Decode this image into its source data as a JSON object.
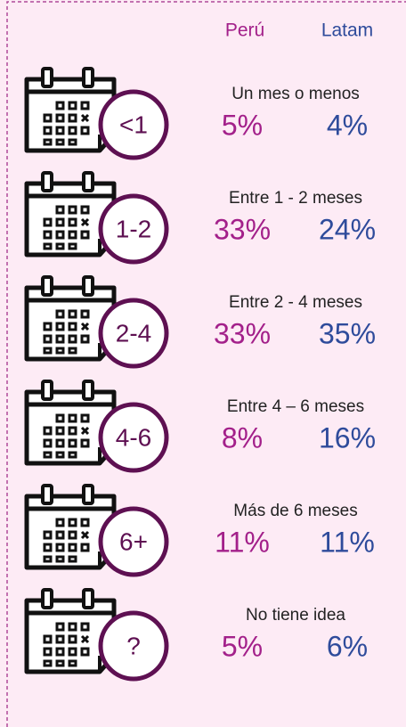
{
  "header": {
    "col1": "Perú",
    "col2": "Latam"
  },
  "rows": [
    {
      "badge": "<1",
      "label": "Un mes o menos",
      "peru": "5%",
      "latam": "4%"
    },
    {
      "badge": "1-2",
      "label": "Entre 1 - 2 meses",
      "peru": "33%",
      "latam": "24%"
    },
    {
      "badge": "2-4",
      "label": "Entre 2 - 4 meses",
      "peru": "33%",
      "latam": "35%"
    },
    {
      "badge": "4-6",
      "label": "Entre 4 – 6 meses",
      "peru": "8%",
      "latam": "16%"
    },
    {
      "badge": "6+",
      "label": "Más de 6 meses",
      "peru": "11%",
      "latam": "11%"
    },
    {
      "badge": "?",
      "label": "No tiene idea",
      "peru": "5%",
      "latam": "6%"
    }
  ]
}
